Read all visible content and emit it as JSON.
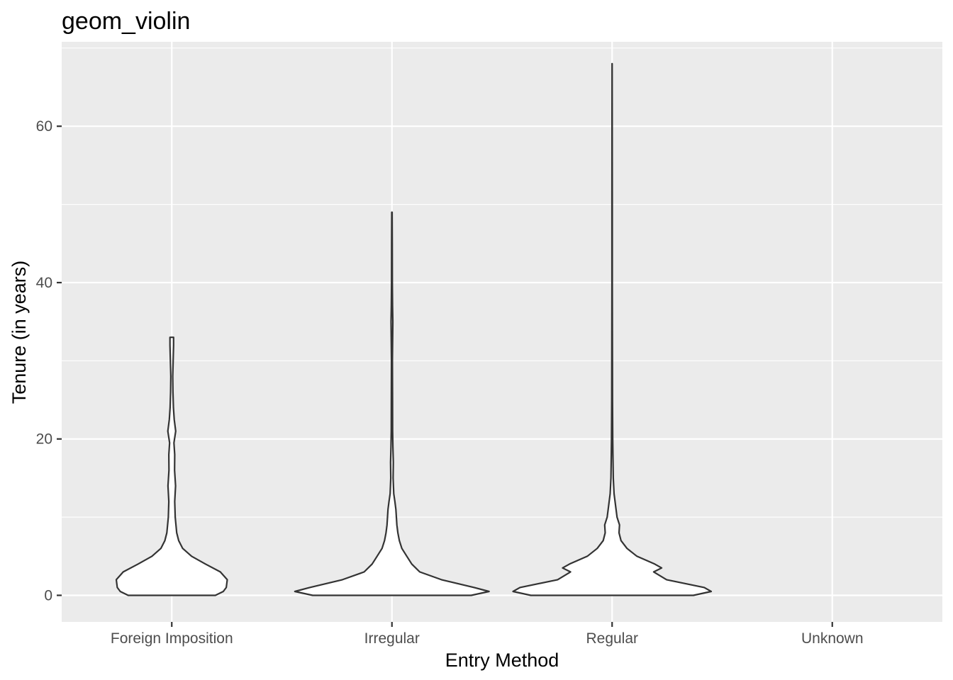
{
  "chart_data": {
    "type": "violin",
    "title": "geom_violin",
    "xlabel": "Entry Method",
    "ylabel": "Tenure (in years)",
    "categories": [
      "Foreign Imposition",
      "Irregular",
      "Regular",
      "Unknown"
    ],
    "y_ticks": [
      0,
      20,
      40,
      60
    ],
    "ylim": [
      -3.4,
      70.8
    ],
    "grid": true,
    "background": "#EBEBEB",
    "grid_color": "#FFFFFF",
    "violin_fill": "#FFFFFF",
    "violin_stroke": "#333333",
    "violins": [
      {
        "category": "Foreign Imposition",
        "min": 0,
        "max": 33,
        "density_profile": [
          [
            0,
            0.44
          ],
          [
            0.5,
            0.52
          ],
          [
            1,
            0.55
          ],
          [
            2,
            0.56
          ],
          [
            3,
            0.49
          ],
          [
            4,
            0.34
          ],
          [
            5,
            0.2
          ],
          [
            6,
            0.11
          ],
          [
            7,
            0.07
          ],
          [
            8,
            0.05
          ],
          [
            10,
            0.035
          ],
          [
            12,
            0.03
          ],
          [
            14,
            0.038
          ],
          [
            16,
            0.028
          ],
          [
            18,
            0.03
          ],
          [
            19.5,
            0.022
          ],
          [
            21,
            0.04
          ],
          [
            22.5,
            0.025
          ],
          [
            24,
            0.017
          ],
          [
            26,
            0.012
          ],
          [
            28,
            0.01
          ],
          [
            30,
            0.014
          ],
          [
            32,
            0.018
          ],
          [
            33,
            0.018
          ]
        ]
      },
      {
        "category": "Irregular",
        "min": 0,
        "max": 49,
        "density_profile": [
          [
            0,
            0.8
          ],
          [
            0.5,
            0.98
          ],
          [
            1,
            0.83
          ],
          [
            2,
            0.5
          ],
          [
            3,
            0.28
          ],
          [
            4,
            0.2
          ],
          [
            5,
            0.15
          ],
          [
            6,
            0.1
          ],
          [
            7,
            0.075
          ],
          [
            8,
            0.06
          ],
          [
            9,
            0.05
          ],
          [
            10,
            0.045
          ],
          [
            11,
            0.04
          ],
          [
            12,
            0.03
          ],
          [
            13,
            0.018
          ],
          [
            15,
            0.012
          ],
          [
            17,
            0.014
          ],
          [
            19,
            0.01
          ],
          [
            21,
            0.007
          ],
          [
            25,
            0.006
          ],
          [
            30,
            0.005
          ],
          [
            35,
            0.009
          ],
          [
            37,
            0.006
          ],
          [
            40,
            0.004
          ],
          [
            45,
            0.003
          ],
          [
            49,
            0.002
          ]
        ]
      },
      {
        "category": "Regular",
        "min": 0,
        "max": 68,
        "density_profile": [
          [
            0,
            0.82
          ],
          [
            0.5,
            1.0
          ],
          [
            1,
            0.93
          ],
          [
            2,
            0.55
          ],
          [
            3,
            0.42
          ],
          [
            3.5,
            0.5
          ],
          [
            4,
            0.43
          ],
          [
            5,
            0.25
          ],
          [
            6,
            0.15
          ],
          [
            7,
            0.09
          ],
          [
            8,
            0.07
          ],
          [
            9,
            0.075
          ],
          [
            10,
            0.05
          ],
          [
            11,
            0.04
          ],
          [
            12,
            0.03
          ],
          [
            13,
            0.02
          ],
          [
            15,
            0.012
          ],
          [
            18,
            0.008
          ],
          [
            20,
            0.006
          ],
          [
            25,
            0.004
          ],
          [
            30,
            0.003
          ],
          [
            40,
            0.002
          ],
          [
            50,
            0.0015
          ],
          [
            60,
            0.001
          ],
          [
            68,
            0.0005
          ]
        ]
      },
      {
        "category": "Unknown",
        "min": null,
        "max": null,
        "density_profile": []
      }
    ]
  }
}
